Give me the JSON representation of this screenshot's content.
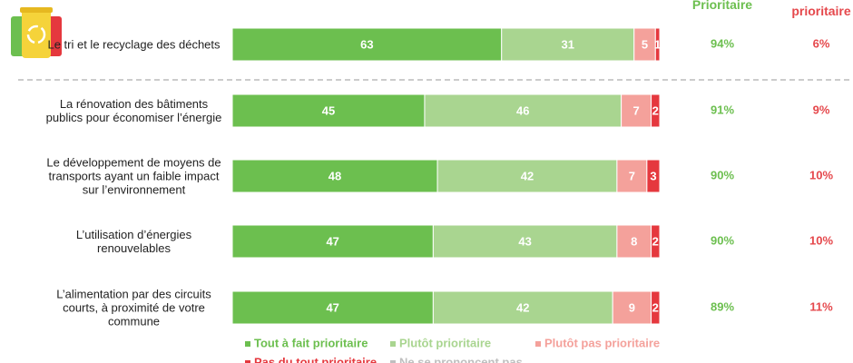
{
  "chart_data": {
    "type": "stacked-bar-horizontal",
    "categories": [
      "Le tri et le recyclage des déchets",
      "La rénovation des bâtiments publics pour économiser l’énergie",
      "Le développement de moyens de transports ayant un faible impact sur l’environnement",
      "L’utilisation d’énergies renouvelables",
      "L’alimentation par des circuits courts, à proximité de votre commune"
    ],
    "xlim": [
      0,
      100
    ],
    "series": [
      {
        "name": "Tout à fait prioritaire",
        "color": "#6cbf4f",
        "values": [
          63,
          45,
          48,
          47,
          47
        ]
      },
      {
        "name": "Plutôt prioritaire",
        "color": "#a9d590",
        "values": [
          31,
          46,
          42,
          43,
          42
        ]
      },
      {
        "name": "Plutôt pas prioritaire",
        "color": "#f4a19b",
        "values": [
          5,
          7,
          7,
          8,
          9
        ]
      },
      {
        "name": "Pas du tout prioritaire",
        "color": "#e5383e",
        "values": [
          1,
          2,
          3,
          2,
          2
        ]
      },
      {
        "name": "Ne se prononcent pas",
        "color": "#bfbfbf",
        "values": [
          0,
          0,
          0,
          0,
          0
        ]
      }
    ],
    "columns": [
      {
        "name": "Prioritaire",
        "color": "#6cbf4f",
        "values": [
          94,
          91,
          90,
          90,
          89
        ],
        "value_labels": [
          "94%",
          "91%",
          "90%",
          "90%",
          "89%"
        ]
      },
      {
        "name": "Pas prioritaire",
        "color": "#e5484c",
        "values": [
          6,
          9,
          10,
          10,
          11
        ],
        "value_labels": [
          "6%",
          "9%",
          "10%",
          "10%",
          "11%"
        ]
      }
    ]
  }
}
